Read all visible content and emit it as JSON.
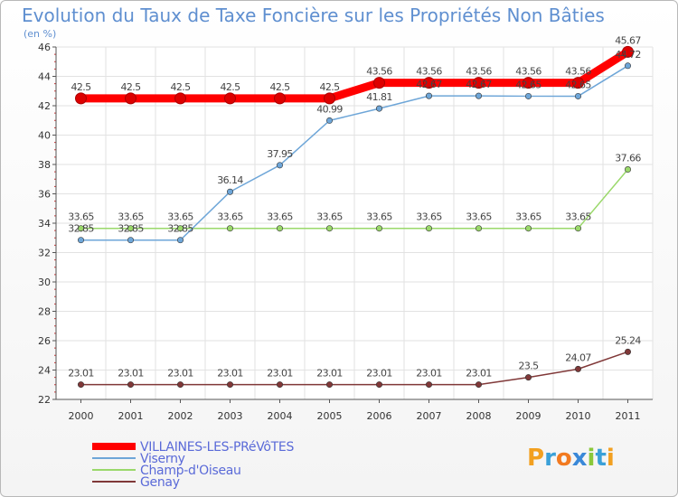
{
  "chart_data": {
    "type": "line",
    "title": "Evolution du Taux de Taxe Foncière sur les Propriétés Non Bâties",
    "subtitle": "(en %)",
    "x": [
      "2000",
      "2001",
      "2002",
      "2003",
      "2004",
      "2005",
      "2006",
      "2007",
      "2008",
      "2009",
      "2010",
      "2011"
    ],
    "ylim": [
      22,
      46
    ],
    "yticks": [
      22,
      24,
      26,
      28,
      30,
      32,
      34,
      36,
      38,
      40,
      42,
      44,
      46
    ],
    "grid": true,
    "legend_position": "bottom-left",
    "series": [
      {
        "name": "VILLAINES-LES-PRéVôTES",
        "color": "#ff0000",
        "values": [
          42.5,
          42.5,
          42.5,
          42.5,
          42.5,
          42.5,
          43.56,
          43.56,
          43.56,
          43.56,
          43.56,
          45.67
        ],
        "labels": [
          "42.5",
          "42.5",
          "42.5",
          "42.5",
          "42.5",
          "42.5",
          "43.56",
          "43.56",
          "43.56",
          "43.56",
          "43.56",
          "45.67"
        ]
      },
      {
        "name": "Viserny",
        "color": "#6ea6d8",
        "values": [
          32.85,
          32.85,
          32.85,
          36.14,
          37.95,
          40.99,
          41.81,
          42.67,
          42.67,
          42.65,
          42.65,
          44.72
        ],
        "labels": [
          "32.85",
          "32.85",
          "32.85",
          "36.14",
          "37.95",
          "40.99",
          "41.81",
          "42.67",
          "42.67",
          "42.65",
          "42.65",
          "44.72"
        ]
      },
      {
        "name": "Champ-d'Oiseau",
        "color": "#9ad86a",
        "values": [
          33.65,
          33.65,
          33.65,
          33.65,
          33.65,
          33.65,
          33.65,
          33.65,
          33.65,
          33.65,
          33.65,
          37.66
        ],
        "labels": [
          "33.65",
          "33.65",
          "33.65",
          "33.65",
          "33.65",
          "33.65",
          "33.65",
          "33.65",
          "33.65",
          "33.65",
          "33.65",
          "37.66"
        ]
      },
      {
        "name": "Genay",
        "color": "#803838",
        "values": [
          23.01,
          23.01,
          23.01,
          23.01,
          23.01,
          23.01,
          23.01,
          23.01,
          23.01,
          23.5,
          24.07,
          25.24
        ],
        "labels": [
          "23.01",
          "23.01",
          "23.01",
          "23.01",
          "23.01",
          "23.01",
          "23.01",
          "23.01",
          "23.01",
          "23.5",
          "24.07",
          "25.24"
        ]
      }
    ]
  },
  "logo": {
    "text": "Proxiti"
  }
}
